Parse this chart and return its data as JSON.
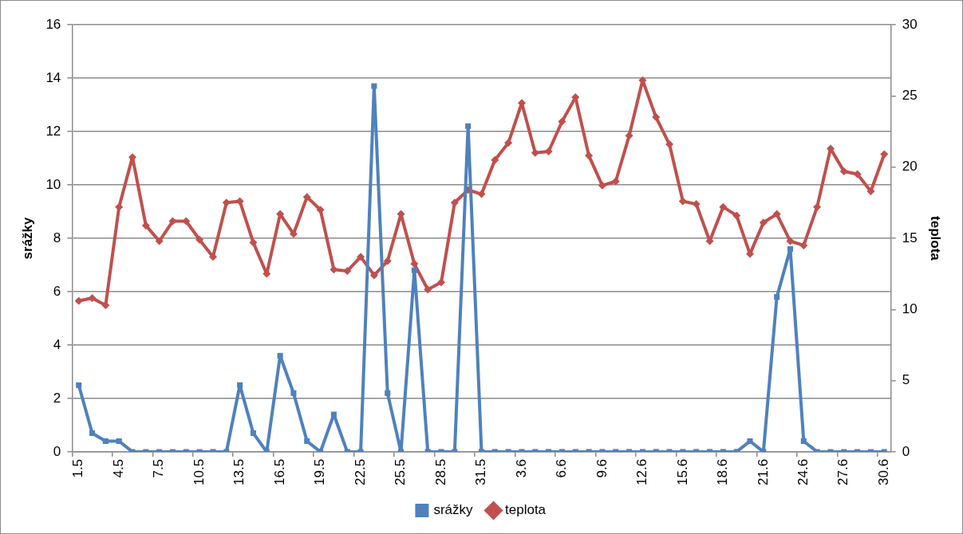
{
  "chart_data": {
    "type": "line",
    "ylabel": "srážky",
    "y2label": "teplota",
    "categories": [
      "1.5",
      null,
      null,
      "4.5",
      null,
      null,
      "7.5",
      null,
      null,
      "10.5",
      null,
      null,
      "13.5",
      null,
      null,
      "16.5",
      null,
      null,
      "19.5",
      null,
      null,
      "22.5",
      null,
      null,
      "25.5",
      null,
      null,
      "28.5",
      null,
      null,
      "31.5",
      null,
      null,
      "3.6",
      null,
      null,
      "6.6",
      null,
      null,
      "9.6",
      null,
      null,
      "12.6",
      null,
      null,
      "15.6",
      null,
      null,
      "18.6",
      null,
      null,
      "21.6",
      null,
      null,
      "24.6",
      null,
      null,
      "27.6",
      null,
      null,
      "30.6"
    ],
    "series": [
      {
        "name": "srážky",
        "color": "#4f81bd",
        "marker": "square",
        "axis": "y",
        "values": [
          2.5,
          0.7,
          0.4,
          0.4,
          0,
          0,
          0,
          0,
          0,
          0,
          0,
          0,
          2.5,
          0.7,
          0,
          3.6,
          2.2,
          0.4,
          0,
          1.4,
          0,
          0,
          13.7,
          2.2,
          0,
          6.8,
          0,
          0,
          0,
          12.2,
          0,
          0,
          0,
          0,
          0,
          0,
          0,
          0,
          0,
          0,
          0,
          0,
          0,
          0,
          0,
          0,
          0,
          0,
          0,
          0,
          0.4,
          0,
          5.8,
          7.6,
          0.4,
          0,
          0,
          0,
          0,
          0,
          0
        ]
      },
      {
        "name": "teplota",
        "color": "#c0504d",
        "marker": "diamond",
        "axis": "y2",
        "values": [
          10.6,
          10.8,
          10.3,
          17.2,
          20.7,
          15.9,
          14.8,
          16.2,
          16.2,
          14.9,
          13.7,
          17.5,
          17.6,
          14.7,
          12.5,
          16.7,
          15.3,
          17.9,
          17.0,
          12.8,
          12.7,
          13.7,
          12.4,
          13.4,
          16.7,
          13.2,
          11.4,
          11.9,
          17.5,
          18.4,
          18.1,
          20.5,
          21.7,
          24.5,
          21.0,
          21.1,
          23.2,
          24.9,
          20.8,
          18.7,
          19.0,
          22.2,
          26.1,
          23.5,
          21.6,
          17.6,
          17.4,
          14.8,
          17.2,
          16.6,
          13.9,
          16.1,
          16.7,
          14.8,
          14.5,
          17.2,
          21.3,
          19.7,
          19.5,
          18.3,
          20.9
        ]
      }
    ],
    "ylim": [
      0,
      16
    ],
    "yticks": [
      0,
      2,
      4,
      6,
      8,
      10,
      12,
      14,
      16
    ],
    "y2lim": [
      0,
      30
    ],
    "y2ticks": [
      0,
      5,
      10,
      15,
      20,
      25,
      30
    ],
    "grid": "y",
    "legend": "bottom"
  }
}
